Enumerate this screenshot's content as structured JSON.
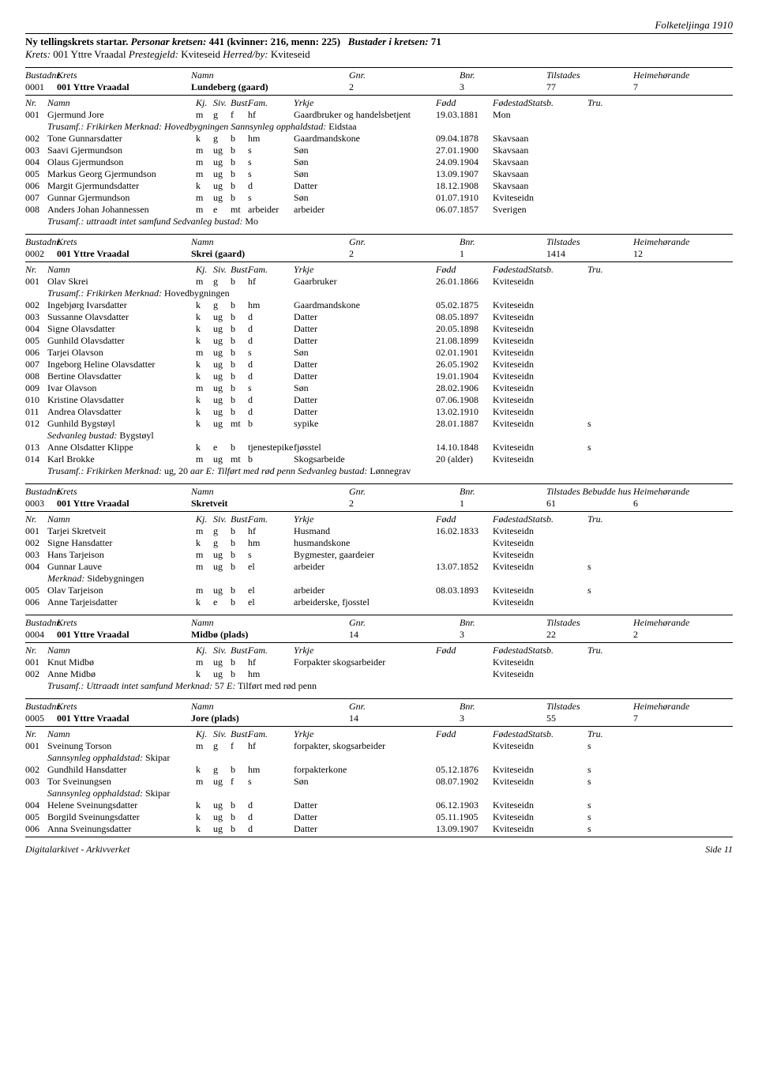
{
  "top_right": "Folketeljinga 1910",
  "section_header": {
    "prefix": "Ny tellingskrets startar.",
    "persons_label": "Personar kretsen:",
    "persons_total": "441",
    "persons_paren": "(kvinner: 216, menn: 225)",
    "bustader_label": "Bustader i kretsen:",
    "bustader_total": "71"
  },
  "krets_line": {
    "krets_label": "Krets:",
    "krets": "001 Yttre Vraadal",
    "preste_label": "Prestegjeld:",
    "preste": "Kviteseid",
    "herred_label": "Herred/by:",
    "herred": "Kviteseid"
  },
  "bustad_headers": {
    "nr": "Bustadnr.",
    "krets": "Krets",
    "namn": "Namn",
    "gnr": "Gnr.",
    "bnr": "Bnr.",
    "til": "Tilstades",
    "heim": "Heimehørande",
    "hus": "Bebudde hus"
  },
  "person_headers": {
    "nr": "Nr.",
    "namn": "Namn",
    "kj": "Kj.",
    "siv": "Siv.",
    "bust": "Bust.",
    "fam": "Fam.",
    "yrkje": "Yrkje",
    "fodd": "Fødd",
    "fodestad": "FødestadStatsb.",
    "tru": "Tru."
  },
  "bustader": [
    {
      "nr": "0001",
      "krets": "001 Yttre Vraadal",
      "namn": "Lundeberg (gaard)",
      "gnr": "2",
      "bnr": "3",
      "til": "77",
      "heim": "7",
      "show_hus": false,
      "persons": [
        {
          "nr": "001",
          "namn": "Gjermund Jore",
          "kj": "m",
          "siv": "g",
          "bust": "f",
          "fam": "hf",
          "yrkje": "Gaardbruker og handelsbetjent",
          "fodd": "19.03.1881",
          "fodestad": "Mo",
          "statsb": "n",
          "tru": "",
          "note": "Trusamf.: Frikirken  Merknad: Hovedbygningen  Sannsynleg opphaldstad: Eidstaa"
        },
        {
          "nr": "002",
          "namn": "Tone Gunnarsdatter",
          "kj": "k",
          "siv": "g",
          "bust": "b",
          "fam": "hm",
          "yrkje": "Gaardmandskone",
          "fodd": "09.04.1878",
          "fodestad": "Skavsaa",
          "statsb": "n",
          "tru": ""
        },
        {
          "nr": "003",
          "namn": "Saavi Gjermundson",
          "kj": "m",
          "siv": "ug",
          "bust": "b",
          "fam": "s",
          "yrkje": "Søn",
          "fodd": "27.01.1900",
          "fodestad": "Skavsaa",
          "statsb": "n",
          "tru": ""
        },
        {
          "nr": "004",
          "namn": "Olaus Gjermundson",
          "kj": "m",
          "siv": "ug",
          "bust": "b",
          "fam": "s",
          "yrkje": "Søn",
          "fodd": "24.09.1904",
          "fodestad": "Skavsaa",
          "statsb": "n",
          "tru": ""
        },
        {
          "nr": "005",
          "namn": "Markus Georg Gjermundson",
          "kj": "m",
          "siv": "ug",
          "bust": "b",
          "fam": "s",
          "yrkje": "Søn",
          "fodd": "13.09.1907",
          "fodestad": "Skavsaa",
          "statsb": "n",
          "tru": ""
        },
        {
          "nr": "006",
          "namn": "Margit Gjermundsdatter",
          "kj": "k",
          "siv": "ug",
          "bust": "b",
          "fam": "d",
          "yrkje": "Datter",
          "fodd": "18.12.1908",
          "fodestad": "Skavsaa",
          "statsb": "n",
          "tru": ""
        },
        {
          "nr": "007",
          "namn": "Gunnar Gjermundson",
          "kj": "m",
          "siv": "ug",
          "bust": "b",
          "fam": "s",
          "yrkje": "Søn",
          "fodd": "01.07.1910",
          "fodestad": "Kviteseid",
          "statsb": "n",
          "tru": ""
        },
        {
          "nr": "008",
          "namn": "Anders Johan Johannessen",
          "kj": "m",
          "siv": "e",
          "bust": "mt",
          "fam": "arbeider",
          "yrkje": "arbeider",
          "fodd": "06.07.1857",
          "fodestad": "Sverige",
          "statsb": "n",
          "tru": "",
          "note": "Trusamf.: uttraadt intet samfund  Sedvanleg bustad: Mo"
        }
      ]
    },
    {
      "nr": "0002",
      "krets": "001 Yttre Vraadal",
      "namn": "Skrei (gaard)",
      "gnr": "2",
      "bnr": "1",
      "til": "1414",
      "heim": "12",
      "show_hus": false,
      "persons": [
        {
          "nr": "001",
          "namn": "Olav Skrei",
          "kj": "m",
          "siv": "g",
          "bust": "b",
          "fam": "hf",
          "yrkje": "Gaarbruker",
          "fodd": "26.01.1866",
          "fodestad": "Kviteseid",
          "statsb": "n",
          "tru": "",
          "note": "Trusamf.: Frikirken  Merknad: Hovedbygningen"
        },
        {
          "nr": "002",
          "namn": "Ingebjørg Ivarsdatter",
          "kj": "k",
          "siv": "g",
          "bust": "b",
          "fam": "hm",
          "yrkje": "Gaardmandskone",
          "fodd": "05.02.1875",
          "fodestad": "Kviteseid",
          "statsb": "n",
          "tru": ""
        },
        {
          "nr": "003",
          "namn": "Sussanne Olavsdatter",
          "kj": "k",
          "siv": "ug",
          "bust": "b",
          "fam": "d",
          "yrkje": "Datter",
          "fodd": "08.05.1897",
          "fodestad": "Kviteseid",
          "statsb": "n",
          "tru": ""
        },
        {
          "nr": "004",
          "namn": "Signe Olavsdatter",
          "kj": "k",
          "siv": "ug",
          "bust": "b",
          "fam": "d",
          "yrkje": "Datter",
          "fodd": "20.05.1898",
          "fodestad": "Kviteseid",
          "statsb": "n",
          "tru": ""
        },
        {
          "nr": "005",
          "namn": "Gunhild Olavsdatter",
          "kj": "k",
          "siv": "ug",
          "bust": "b",
          "fam": "d",
          "yrkje": "Datter",
          "fodd": "21.08.1899",
          "fodestad": "Kviteseid",
          "statsb": "n",
          "tru": ""
        },
        {
          "nr": "006",
          "namn": "Tarjei Olavson",
          "kj": "m",
          "siv": "ug",
          "bust": "b",
          "fam": "s",
          "yrkje": "Søn",
          "fodd": "02.01.1901",
          "fodestad": "Kviteseid",
          "statsb": "n",
          "tru": ""
        },
        {
          "nr": "007",
          "namn": "Ingeborg Heline Olavsdatter",
          "kj": "k",
          "siv": "ug",
          "bust": "b",
          "fam": "d",
          "yrkje": "Datter",
          "fodd": "26.05.1902",
          "fodestad": "Kviteseid",
          "statsb": "n",
          "tru": ""
        },
        {
          "nr": "008",
          "namn": "Bertine Olavsdatter",
          "kj": "k",
          "siv": "ug",
          "bust": "b",
          "fam": "d",
          "yrkje": "Datter",
          "fodd": "19.01.1904",
          "fodestad": "Kviteseid",
          "statsb": "n",
          "tru": ""
        },
        {
          "nr": "009",
          "namn": "Ivar Olavson",
          "kj": "m",
          "siv": "ug",
          "bust": "b",
          "fam": "s",
          "yrkje": "Søn",
          "fodd": "28.02.1906",
          "fodestad": "Kviteseid",
          "statsb": "n",
          "tru": ""
        },
        {
          "nr": "010",
          "namn": "Kristine Olavsdatter",
          "kj": "k",
          "siv": "ug",
          "bust": "b",
          "fam": "d",
          "yrkje": "Datter",
          "fodd": "07.06.1908",
          "fodestad": "Kviteseid",
          "statsb": "n",
          "tru": ""
        },
        {
          "nr": "011",
          "namn": "Andrea Olavsdatter",
          "kj": "k",
          "siv": "ug",
          "bust": "b",
          "fam": "d",
          "yrkje": "Datter",
          "fodd": "13.02.1910",
          "fodestad": "Kviteseid",
          "statsb": "n",
          "tru": ""
        },
        {
          "nr": "012",
          "namn": "Gunhild Bygstøyl",
          "kj": "k",
          "siv": "ug",
          "bust": "mt",
          "fam": "b",
          "yrkje": "sypike",
          "fodd": "28.01.1887",
          "fodestad": "Kviteseid",
          "statsb": "n",
          "tru": "s",
          "note": "Sedvanleg bustad: Bygstøyl"
        },
        {
          "nr": "013",
          "namn": "Anne Olsdatter Klippe",
          "kj": "k",
          "siv": "e",
          "bust": "b",
          "fam": "tjenestepike",
          "yrkje": "fjøsstel",
          "fodd": "14.10.1848",
          "fodestad": "Kviteseid",
          "statsb": "n",
          "tru": "s"
        },
        {
          "nr": "014",
          "namn": "Karl Brokke",
          "kj": "m",
          "siv": "ug",
          "bust": "mt",
          "fam": "b",
          "yrkje": "Skogsarbeide",
          "fodd": "20 (alder)",
          "fodestad": "Kviteseid",
          "statsb": "n",
          "tru": "",
          "note": "Trusamf.: Frikirken  Merknad: ug, 20 aar E: Tilført med rød penn  Sedvanleg bustad: Lønnegrav"
        }
      ]
    },
    {
      "nr": "0003",
      "krets": "001 Yttre Vraadal",
      "namn": "Skretveit",
      "gnr": "2",
      "bnr": "1",
      "til": "61",
      "heim": "6",
      "show_hus": true,
      "persons": [
        {
          "nr": "001",
          "namn": "Tarjei Skretveit",
          "kj": "m",
          "siv": "g",
          "bust": "b",
          "fam": "hf",
          "yrkje": "Husmand",
          "fodd": "16.02.1833",
          "fodestad": "Kviteseid",
          "statsb": "n",
          "tru": ""
        },
        {
          "nr": "002",
          "namn": "Signe Hansdatter",
          "kj": "k",
          "siv": "g",
          "bust": "b",
          "fam": "hm",
          "yrkje": "husmandskone",
          "fodd": "",
          "fodestad": "Kviteseid",
          "statsb": "n",
          "tru": ""
        },
        {
          "nr": "003",
          "namn": "Hans Tarjeison",
          "kj": "m",
          "siv": "ug",
          "bust": "b",
          "fam": "s",
          "yrkje": "Bygmester, gaardeier",
          "fodd": "",
          "fodestad": "Kviteseid",
          "statsb": "n",
          "tru": ""
        },
        {
          "nr": "004",
          "namn": "Gunnar Lauve",
          "kj": "m",
          "siv": "ug",
          "bust": "b",
          "fam": "el",
          "yrkje": "arbeider",
          "fodd": "13.07.1852",
          "fodestad": "Kviteseid",
          "statsb": "n",
          "tru": "s",
          "note": "Merknad: Sidebygningen"
        },
        {
          "nr": "005",
          "namn": "Olav Tarjeison",
          "kj": "m",
          "siv": "ug",
          "bust": "b",
          "fam": "el",
          "yrkje": "arbeider",
          "fodd": "08.03.1893",
          "fodestad": "Kviteseid",
          "statsb": "n",
          "tru": "s"
        },
        {
          "nr": "006",
          "namn": "Anne Tarjeisdatter",
          "kj": "k",
          "siv": "e",
          "bust": "b",
          "fam": "el",
          "yrkje": "arbeiderske, fjosstel",
          "fodd": "",
          "fodestad": "Kviteseid",
          "statsb": "n",
          "tru": ""
        }
      ]
    },
    {
      "nr": "0004",
      "krets": "001 Yttre Vraadal",
      "namn": "Midbø (plads)",
      "gnr": "14",
      "bnr": "3",
      "til": "22",
      "heim": "2",
      "show_hus": false,
      "persons": [
        {
          "nr": "001",
          "namn": "Knut Midbø",
          "kj": "m",
          "siv": "ug",
          "bust": "b",
          "fam": "hf",
          "yrkje": "Forpakter skogsarbeider",
          "fodd": "",
          "fodestad": "Kviteseid",
          "statsb": "n",
          "tru": ""
        },
        {
          "nr": "002",
          "namn": "Anne Midbø",
          "kj": "k",
          "siv": "ug",
          "bust": "b",
          "fam": "hm",
          "yrkje": "",
          "fodd": "",
          "fodestad": "Kviteseid",
          "statsb": "n",
          "tru": "",
          "note": "Trusamf.: Uttraadt intet samfund  Merknad: 57 E: Tilført med rød penn"
        }
      ]
    },
    {
      "nr": "0005",
      "krets": "001 Yttre Vraadal",
      "namn": "Jore (plads)",
      "gnr": "14",
      "bnr": "3",
      "til": "55",
      "heim": "7",
      "show_hus": false,
      "persons": [
        {
          "nr": "001",
          "namn": "Sveinung Torson",
          "kj": "m",
          "siv": "g",
          "bust": "f",
          "fam": "hf",
          "yrkje": "forpakter, skogsarbeider",
          "fodd": "",
          "fodestad": "Kviteseid",
          "statsb": "n",
          "tru": "s",
          "note": "Sannsynleg opphaldstad: Skipar"
        },
        {
          "nr": "002",
          "namn": "Gundhild Hansdatter",
          "kj": "k",
          "siv": "g",
          "bust": "b",
          "fam": "hm",
          "yrkje": "forpakterkone",
          "fodd": "05.12.1876",
          "fodestad": "Kviteseid",
          "statsb": "n",
          "tru": "s"
        },
        {
          "nr": "003",
          "namn": "Tor Sveinungsen",
          "kj": "m",
          "siv": "ug",
          "bust": "f",
          "fam": "s",
          "yrkje": "Søn",
          "fodd": "08.07.1902",
          "fodestad": "Kviteseid",
          "statsb": "n",
          "tru": "s",
          "note": "Sannsynleg opphaldstad: Skipar"
        },
        {
          "nr": "004",
          "namn": "Helene Sveinungsdatter",
          "kj": "k",
          "siv": "ug",
          "bust": "b",
          "fam": "d",
          "yrkje": "Datter",
          "fodd": "06.12.1903",
          "fodestad": "Kviteseid",
          "statsb": "n",
          "tru": "s"
        },
        {
          "nr": "005",
          "namn": "Borgild Sveinungsdatter",
          "kj": "k",
          "siv": "ug",
          "bust": "b",
          "fam": "d",
          "yrkje": "Datter",
          "fodd": "05.11.1905",
          "fodestad": "Kviteseid",
          "statsb": "n",
          "tru": "s"
        },
        {
          "nr": "006",
          "namn": "Anna Sveinungsdatter",
          "kj": "k",
          "siv": "ug",
          "bust": "b",
          "fam": "d",
          "yrkje": "Datter",
          "fodd": "13.09.1907",
          "fodestad": "Kviteseid",
          "statsb": "n",
          "tru": "s"
        }
      ]
    }
  ],
  "footer": {
    "left": "Digitalarkivet - Arkivverket",
    "right": "Side 11"
  }
}
